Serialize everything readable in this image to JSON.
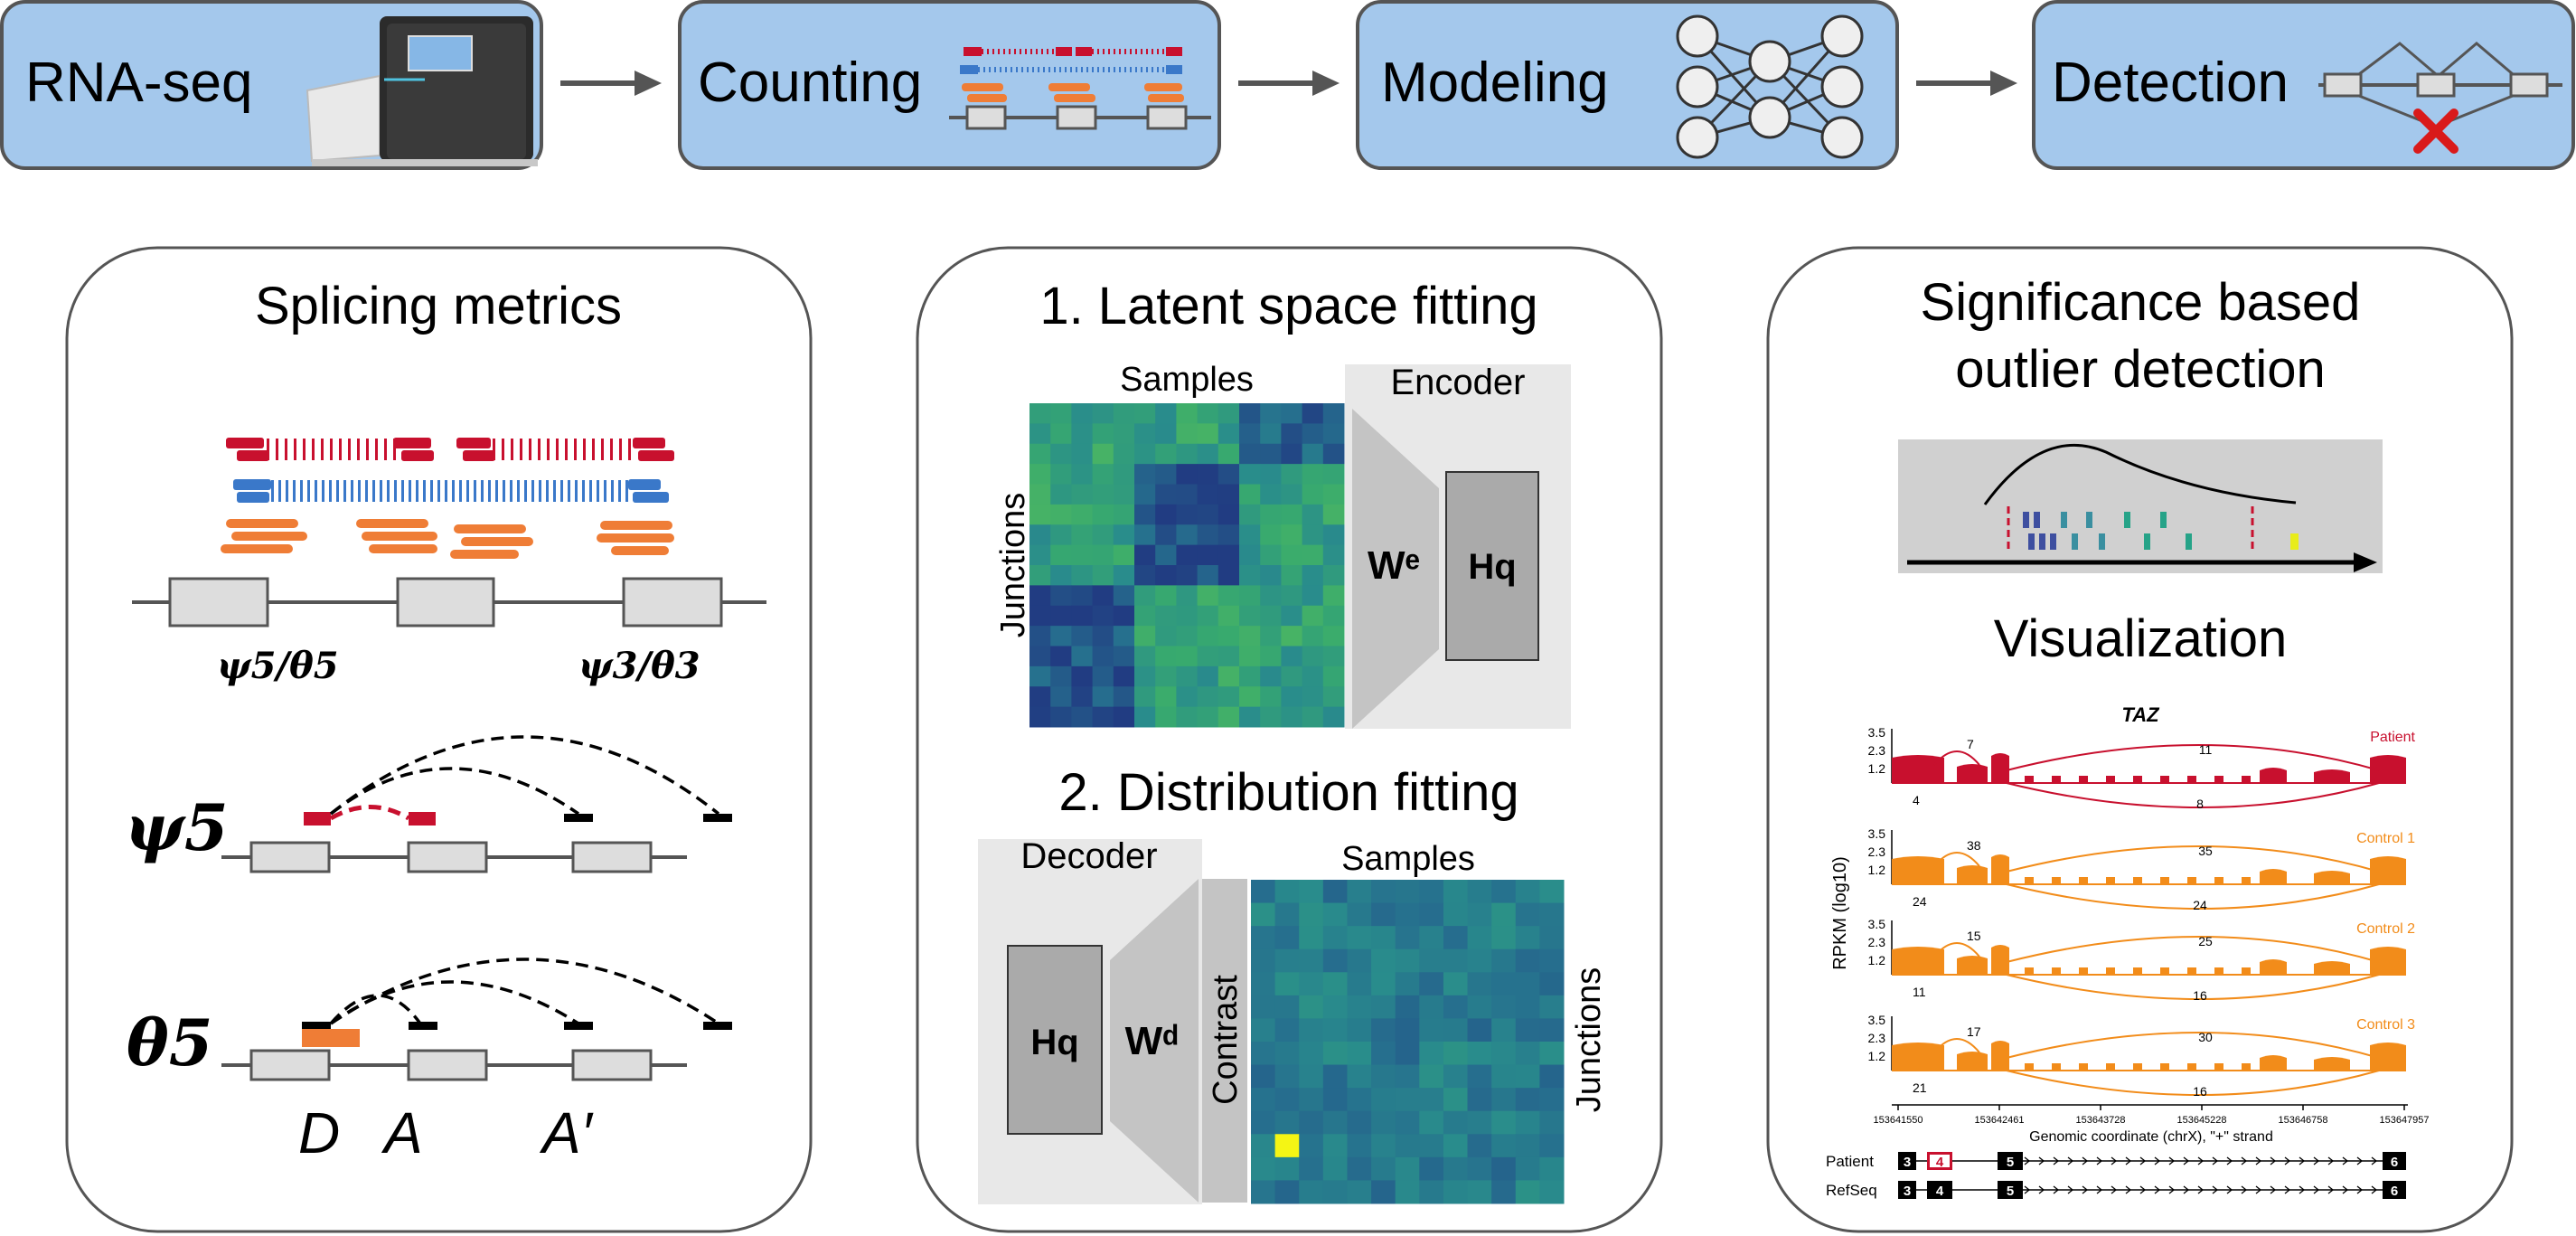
{
  "pipeline": {
    "steps": [
      {
        "label": "RNA-seq"
      },
      {
        "label": "Counting"
      },
      {
        "label": "Modeling"
      },
      {
        "label": "Detection"
      }
    ]
  },
  "splicing": {
    "title": "Splicing metrics",
    "psi5_theta5": "ψ5/θ5",
    "psi3_theta3": "ψ3/θ3",
    "psi5_big": "ψ5",
    "theta5_big": "θ5",
    "sites": {
      "donor": "D",
      "acceptor": "A",
      "acceptor_alt": "A′"
    }
  },
  "latent": {
    "title": "1. Latent space fitting",
    "samples": "Samples",
    "junctions": "Junctions",
    "encoder": "Encoder",
    "we": "Wᵉ",
    "hq": "Hq"
  },
  "distribution": {
    "title": "2. Distribution fitting",
    "decoder": "Decoder",
    "samples": "Samples",
    "junctions": "Junctions",
    "wd": "Wᵈ",
    "hq": "Hq",
    "contrast": "Contrast"
  },
  "significance": {
    "title_line1": "Significance based",
    "title_line2": "outlier detection",
    "visualization": "Visualization"
  },
  "sashimi": {
    "gene": "TAZ",
    "ylabel": "RPKM (log10)",
    "yticks": [
      "3.5",
      "2.3",
      "1.2"
    ],
    "tracks": [
      {
        "name": "Patient",
        "color": "#c8102e",
        "top": "7",
        "mid": "11",
        "bottom_left": "4",
        "bottom": "8"
      },
      {
        "name": "Control 1",
        "color": "#f28c1a",
        "top": "38",
        "mid": "35",
        "bottom_left": "24",
        "bottom": "24"
      },
      {
        "name": "Control 2",
        "color": "#f28c1a",
        "top": "15",
        "mid": "25",
        "bottom_left": "11",
        "bottom": "16"
      },
      {
        "name": "Control 3",
        "color": "#f28c1a",
        "top": "17",
        "mid": "30",
        "bottom_left": "21",
        "bottom": "16"
      }
    ],
    "xticks": [
      "153641550",
      "153642461",
      "153643728",
      "153645228",
      "153646758",
      "153647957"
    ],
    "xlabel": "Genomic coordinate (chrX), \"+\" strand",
    "gene_models": [
      {
        "name": "Patient",
        "exons": [
          "3",
          "4",
          "5",
          "6"
        ]
      },
      {
        "name": "RefSeq",
        "exons": [
          "3",
          "4",
          "5",
          "6"
        ]
      }
    ]
  },
  "colors": {
    "step_fill": "#a4c8ec",
    "red_reads": "#c8102e",
    "blue_reads": "#3a78c9",
    "orange_reads": "#ef7d36",
    "patient": "#c8102e",
    "control": "#f28c1a",
    "outlier_cell": "#f5f514"
  }
}
